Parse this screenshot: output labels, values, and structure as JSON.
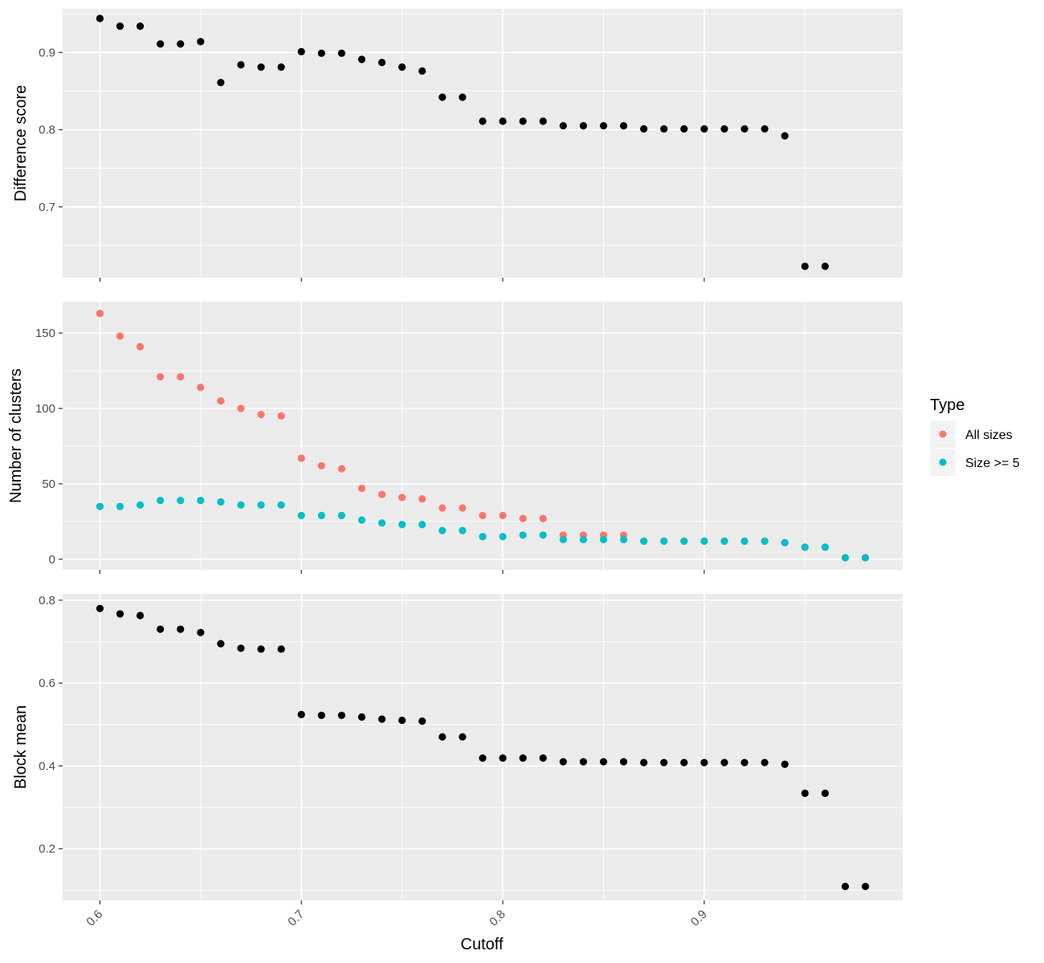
{
  "chart_data": {
    "type": "scatter",
    "xlabel": "Cutoff",
    "xlim": [
      0.5815,
      0.9985
    ],
    "x_ticks": [
      0.6,
      0.7,
      0.8,
      0.9
    ],
    "x_tick_labels": [
      "0.6",
      "0.7",
      "0.8",
      "0.9"
    ],
    "x_values": [
      0.6,
      0.61,
      0.62,
      0.63,
      0.64,
      0.65,
      0.66,
      0.67,
      0.68,
      0.69,
      0.7,
      0.71,
      0.72,
      0.73,
      0.74,
      0.75,
      0.76,
      0.77,
      0.78,
      0.79,
      0.8,
      0.81,
      0.82,
      0.83,
      0.84,
      0.85,
      0.86,
      0.87,
      0.88,
      0.89,
      0.9,
      0.91,
      0.92,
      0.93,
      0.94,
      0.95,
      0.96,
      0.97,
      0.98
    ],
    "legend": {
      "title": "Type",
      "placement": "right",
      "entries": [
        {
          "label": "All sizes",
          "color": "#F8766D"
        },
        {
          "label": "Size >= 5",
          "color": "#00BFC4"
        }
      ]
    },
    "panels": [
      {
        "ylabel": "Difference score",
        "ylim": [
          0.6083,
          0.9565
        ],
        "y_ticks": [
          0.7,
          0.8,
          0.9
        ],
        "y_tick_labels": [
          "0.7",
          "0.8",
          "0.9"
        ],
        "series": [
          {
            "color": "#000000",
            "values": [
              0.944,
              0.934,
              0.934,
              0.911,
              0.911,
              0.914,
              0.861,
              0.884,
              0.881,
              0.881,
              0.901,
              0.899,
              0.899,
              0.891,
              0.887,
              0.881,
              0.876,
              0.842,
              0.842,
              0.811,
              0.811,
              0.811,
              0.811,
              0.805,
              0.805,
              0.805,
              0.805,
              0.801,
              0.801,
              0.801,
              0.801,
              0.801,
              0.801,
              0.801,
              0.792,
              0.623,
              0.623,
              null,
              null
            ]
          }
        ]
      },
      {
        "ylabel": "Number of clusters",
        "ylim": [
          -7.0,
          170.8
        ],
        "y_ticks": [
          0,
          50,
          100,
          150
        ],
        "y_tick_labels": [
          "0",
          "50",
          "100",
          "150"
        ],
        "series": [
          {
            "name": "All sizes",
            "color": "#F8766D",
            "values": [
              163,
              148,
              141,
              121,
              121,
              114,
              105,
              100,
              96,
              95,
              67,
              62,
              60,
              47,
              43,
              41,
              40,
              34,
              34,
              29,
              29,
              27,
              27,
              16,
              16,
              16,
              16,
              12,
              12,
              12,
              12,
              12,
              12,
              12,
              11,
              8,
              8,
              1,
              1
            ]
          },
          {
            "name": "Size >= 5",
            "color": "#00BFC4",
            "values": [
              35,
              35,
              36,
              39,
              39,
              39,
              38,
              36,
              36,
              36,
              29,
              29,
              29,
              26,
              24,
              23,
              23,
              19,
              19,
              15,
              15,
              16,
              16,
              13,
              13,
              13,
              13,
              12,
              12,
              12,
              12,
              12,
              12,
              12,
              11,
              8,
              8,
              1,
              1
            ]
          }
        ]
      },
      {
        "ylabel": "Block mean",
        "ylim": [
          0.0754,
          0.8153
        ],
        "y_ticks": [
          0.2,
          0.4,
          0.6,
          0.8
        ],
        "y_tick_labels": [
          "0.2",
          "0.4",
          "0.6",
          "0.8"
        ],
        "series": [
          {
            "color": "#000000",
            "values": [
              0.78,
              0.767,
              0.763,
              0.73,
              0.73,
              0.722,
              0.695,
              0.684,
              0.682,
              0.682,
              0.524,
              0.522,
              0.522,
              0.518,
              0.513,
              0.51,
              0.508,
              0.47,
              0.47,
              0.419,
              0.419,
              0.419,
              0.419,
              0.41,
              0.41,
              0.41,
              0.41,
              0.408,
              0.408,
              0.408,
              0.408,
              0.408,
              0.408,
              0.408,
              0.404,
              0.334,
              0.334,
              0.109,
              0.109
            ]
          }
        ]
      }
    ]
  }
}
